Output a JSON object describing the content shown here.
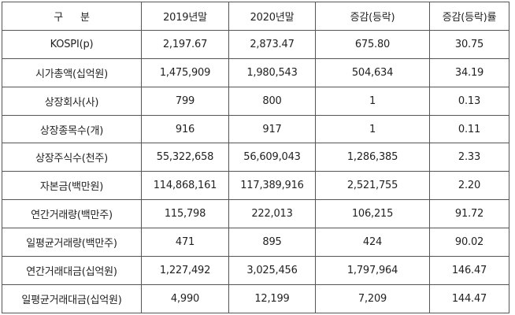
{
  "table": {
    "columns": [
      {
        "key": "label",
        "header": "구 분"
      },
      {
        "key": "y2019",
        "header": "2019년말"
      },
      {
        "key": "y2020",
        "header": "2020년말"
      },
      {
        "key": "change",
        "header": "증감(등락)"
      },
      {
        "key": "rate",
        "header": "증감(등락)률"
      }
    ],
    "rows": [
      {
        "label": "KOSPI(p)",
        "y2019": "2,197.67",
        "y2020": "2,873.47",
        "change": "675.80",
        "rate": "30.75"
      },
      {
        "label": "시가총액(십억원)",
        "y2019": "1,475,909",
        "y2020": "1,980,543",
        "change": "504,634",
        "rate": "34.19"
      },
      {
        "label": "상장회사(사)",
        "y2019": "799",
        "y2020": "800",
        "change": "1",
        "rate": "0.13"
      },
      {
        "label": "상장종목수(개)",
        "y2019": "916",
        "y2020": "917",
        "change": "1",
        "rate": "0.11"
      },
      {
        "label": "상장주식수(천주)",
        "y2019": "55,322,658",
        "y2020": "56,609,043",
        "change": "1,286,385",
        "rate": "2.33"
      },
      {
        "label": "자본금(백만원)",
        "y2019": "114,868,161",
        "y2020": "117,389,916",
        "change": "2,521,755",
        "rate": "2.20"
      },
      {
        "label": "연간거래량(백만주)",
        "y2019": "115,798",
        "y2020": "222,013",
        "change": "106,215",
        "rate": "91.72"
      },
      {
        "label": "일평균거래량(백만주)",
        "y2019": "471",
        "y2020": "895",
        "change": "424",
        "rate": "90.02"
      },
      {
        "label": "연간거래대금(십억원)",
        "y2019": "1,227,492",
        "y2020": "3,025,456",
        "change": "1,797,964",
        "rate": "146.47"
      },
      {
        "label": "일평균거래대금(십억원)",
        "y2019": "4,990",
        "y2020": "12,199",
        "change": "7,209",
        "rate": "144.47"
      }
    ]
  },
  "colors": {
    "border": "#555555",
    "text": "#222222",
    "background": "#ffffff"
  }
}
